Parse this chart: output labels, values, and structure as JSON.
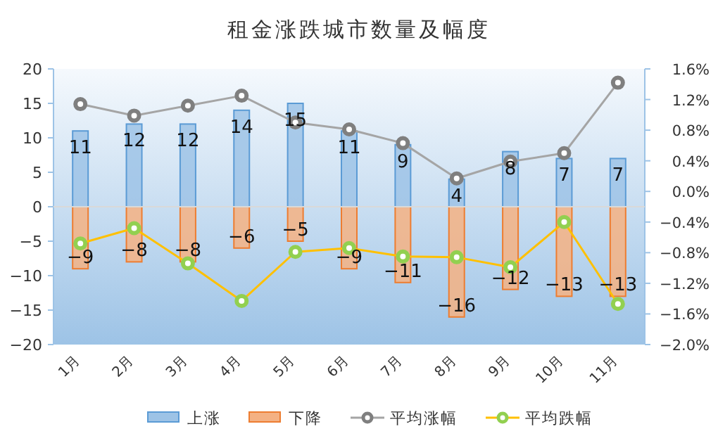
{
  "chart_data": {
    "type": "bar",
    "title": "租金涨跌城市数量及幅度",
    "categories": [
      "1月",
      "2月",
      "3月",
      "4月",
      "5月",
      "6月",
      "7月",
      "8月",
      "9月",
      "10月",
      "11月"
    ],
    "series": [
      {
        "name": "上涨",
        "color": "#9dc3e6",
        "values": [
          11,
          12,
          12,
          14,
          15,
          11,
          9,
          4,
          8,
          7,
          7
        ],
        "value_labels": [
          "11",
          "12",
          "12",
          "14",
          "15",
          "11",
          "9",
          "4",
          "8",
          "7",
          "7"
        ]
      },
      {
        "name": "下降",
        "color": "#f4b183",
        "values": [
          -9,
          -8,
          -8,
          -6,
          -5,
          -9,
          -11,
          -16,
          -12,
          -13,
          -13
        ],
        "value_labels": [
          "−9",
          "−8",
          "−8",
          "−6",
          "−5",
          "−9",
          "−11",
          "−16",
          "−12",
          "−13",
          "−13"
        ]
      },
      {
        "name": "平均涨幅",
        "type": "line",
        "axis": "y2",
        "color": "#a5a5a5",
        "marker": "circle",
        "values": [
          1.14,
          0.99,
          1.12,
          1.25,
          0.9,
          0.81,
          0.63,
          0.17,
          0.39,
          0.5,
          1.42
        ]
      },
      {
        "name": "平均跌幅",
        "type": "line",
        "axis": "y2",
        "color": "#ffc000",
        "marker": "circle",
        "values": [
          -0.68,
          -0.48,
          -0.94,
          -1.43,
          -0.79,
          -0.74,
          -0.85,
          -0.86,
          -0.99,
          -0.4,
          -1.47
        ]
      }
    ],
    "ylim": [
      -20,
      20
    ],
    "yticks": [
      -20,
      -15,
      -10,
      -5,
      0,
      5,
      10,
      15,
      20
    ],
    "y2lim": [
      -2.0,
      1.6
    ],
    "y2ticks": [
      {
        "value": -2.0,
        "label": "−2.0%"
      },
      {
        "value": -1.6,
        "label": "−1.6%"
      },
      {
        "value": -1.2,
        "label": "−1.2%"
      },
      {
        "value": -0.8,
        "label": "−0.8%"
      },
      {
        "value": -0.4,
        "label": "−0.4%"
      },
      {
        "value": 0.0,
        "label": "0.0%"
      },
      {
        "value": 0.4,
        "label": "0.4%"
      },
      {
        "value": 0.8,
        "label": "0.8%"
      },
      {
        "value": 1.2,
        "label": "1.2%"
      },
      {
        "value": 1.6,
        "label": "1.6%"
      }
    ],
    "legend": "bottom"
  }
}
